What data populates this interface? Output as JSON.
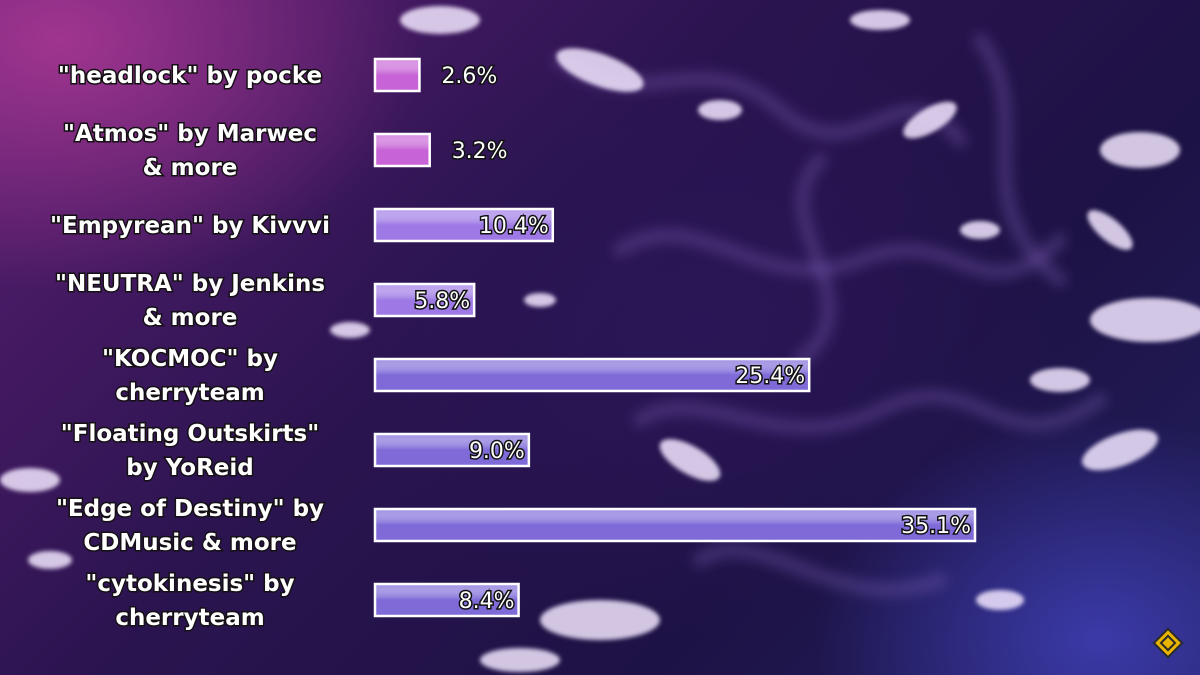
{
  "chart_data": {
    "type": "bar",
    "orientation": "horizontal",
    "title": "",
    "xlabel": "",
    "ylabel": "",
    "categories": [
      [
        "\"headlock\" by pocke"
      ],
      [
        "\"Atmos\" by Marwec",
        "& more"
      ],
      [
        "\"Empyrean\" by Kivvvi"
      ],
      [
        "\"NEUTRA\" by Jenkins",
        "& more"
      ],
      [
        "\"KOCMOC\" by",
        "cherryteam"
      ],
      [
        "\"Floating Outskirts\"",
        "by YoReid"
      ],
      [
        "\"Edge of Destiny\" by",
        "CDMusic & more"
      ],
      [
        "\"cytokinesis\" by",
        "cherryteam"
      ]
    ],
    "values": [
      2.6,
      3.2,
      10.4,
      5.8,
      25.4,
      9.0,
      35.1,
      8.4
    ],
    "value_labels": [
      "2.6%",
      "3.2%",
      "10.4%",
      "5.8%",
      "25.4%",
      "9.0%",
      "35.1%",
      "8.4%"
    ],
    "value_label_inside": [
      false,
      false,
      true,
      true,
      true,
      true,
      true,
      true
    ],
    "xlim": [
      0,
      35.1
    ],
    "grid": false,
    "legend": "none",
    "colors": {
      "bar_pink": "#c763d6",
      "bar_violet": "#9e79e6",
      "bar_blue_violet": "#7f6ad8",
      "bar_border": "#ffffff"
    }
  },
  "icons": {
    "channel_logo": "diamond-badge-icon"
  }
}
